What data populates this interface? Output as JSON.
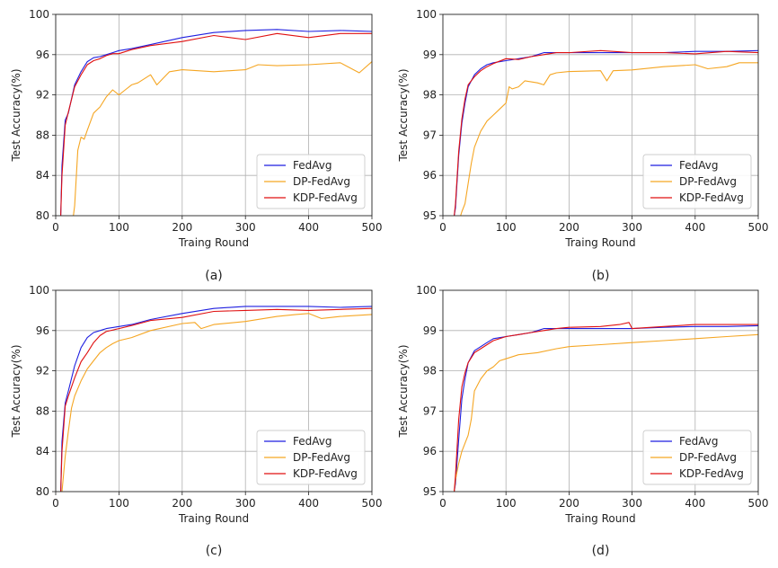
{
  "colors": {
    "FedAvg": "#1f1fe0",
    "DP-FedAvg": "#f5a623",
    "KDP-FedAvg": "#e01010"
  },
  "chart_data": [
    {
      "type": "line",
      "caption": "(a)",
      "xlabel": "Traing Round",
      "ylabel": "Test Accuracy(%)",
      "xlim": [
        0,
        500
      ],
      "ylim": [
        80,
        100
      ],
      "xticks": [
        "0",
        "100",
        "200",
        "300",
        "400",
        "500"
      ],
      "yticks": [
        "80",
        "84",
        "88",
        "92",
        "96",
        "100"
      ],
      "grid": true,
      "legend": "bottom-right",
      "series": [
        {
          "name": "FedAvg",
          "x": [
            8,
            10,
            15,
            20,
            30,
            40,
            50,
            60,
            70,
            80,
            90,
            100,
            120,
            150,
            200,
            250,
            300,
            350,
            400,
            450,
            500
          ],
          "y": [
            80,
            85,
            89.5,
            90.2,
            93.0,
            94.3,
            95.3,
            95.7,
            95.8,
            96.0,
            96.2,
            96.4,
            96.6,
            97.0,
            97.7,
            98.2,
            98.4,
            98.5,
            98.3,
            98.4,
            98.3
          ]
        },
        {
          "name": "DP-FedAvg",
          "x": [
            28,
            30,
            35,
            40,
            45,
            50,
            60,
            70,
            80,
            90,
            100,
            110,
            120,
            130,
            150,
            160,
            180,
            200,
            250,
            300,
            320,
            350,
            400,
            450,
            480,
            500
          ],
          "y": [
            80,
            81.0,
            86.5,
            87.8,
            87.6,
            88.5,
            90.2,
            90.8,
            91.8,
            92.5,
            92.0,
            92.5,
            93.0,
            93.2,
            94.0,
            93.0,
            94.3,
            94.5,
            94.3,
            94.5,
            95.0,
            94.9,
            95.0,
            95.2,
            94.2,
            95.3
          ]
        },
        {
          "name": "KDP-FedAvg",
          "x": [
            8,
            10,
            15,
            20,
            30,
            40,
            50,
            60,
            70,
            80,
            90,
            100,
            120,
            150,
            200,
            250,
            300,
            350,
            400,
            450,
            500
          ],
          "y": [
            80,
            84,
            89.0,
            90.3,
            92.8,
            94.0,
            95.0,
            95.4,
            95.6,
            95.9,
            96.1,
            96.1,
            96.5,
            96.9,
            97.3,
            97.9,
            97.5,
            98.1,
            97.7,
            98.1,
            98.1
          ]
        }
      ]
    },
    {
      "type": "line",
      "caption": "(b)",
      "xlabel": "Traing Round",
      "ylabel": "Test Accuracy(%)",
      "xlim": [
        0,
        500
      ],
      "ylim": [
        95,
        100
      ],
      "xticks": [
        "0",
        "100",
        "200",
        "300",
        "400",
        "500"
      ],
      "yticks": [
        "95",
        "96",
        "97",
        "98",
        "99",
        "100"
      ],
      "grid": true,
      "legend": "bottom-right",
      "series": [
        {
          "name": "FedAvg",
          "x": [
            18,
            20,
            25,
            30,
            35,
            40,
            50,
            60,
            70,
            80,
            100,
            120,
            140,
            160,
            180,
            200,
            250,
            300,
            350,
            400,
            450,
            500
          ],
          "y": [
            95,
            95.2,
            96.5,
            97.3,
            97.8,
            98.2,
            98.5,
            98.65,
            98.75,
            98.8,
            98.85,
            98.9,
            98.95,
            99.05,
            99.05,
            99.05,
            99.05,
            99.05,
            99.05,
            99.08,
            99.08,
            99.1
          ]
        },
        {
          "name": "DP-FedAvg",
          "x": [
            28,
            30,
            35,
            40,
            45,
            50,
            60,
            70,
            80,
            90,
            100,
            105,
            110,
            120,
            130,
            150,
            160,
            170,
            180,
            200,
            250,
            260,
            270,
            300,
            350,
            400,
            420,
            450,
            470,
            500
          ],
          "y": [
            95,
            95.1,
            95.3,
            95.8,
            96.3,
            96.7,
            97.1,
            97.35,
            97.5,
            97.65,
            97.8,
            98.2,
            98.15,
            98.2,
            98.35,
            98.3,
            98.25,
            98.5,
            98.55,
            98.58,
            98.6,
            98.35,
            98.6,
            98.62,
            98.7,
            98.75,
            98.65,
            98.7,
            98.8,
            98.8
          ]
        },
        {
          "name": "KDP-FedAvg",
          "x": [
            18,
            20,
            25,
            30,
            35,
            40,
            50,
            60,
            70,
            80,
            100,
            120,
            140,
            160,
            180,
            200,
            250,
            300,
            350,
            400,
            450,
            500
          ],
          "y": [
            95,
            95.3,
            96.6,
            97.4,
            97.9,
            98.25,
            98.45,
            98.6,
            98.7,
            98.78,
            98.9,
            98.88,
            98.95,
            99.0,
            99.05,
            99.05,
            99.1,
            99.05,
            99.05,
            99.02,
            99.08,
            99.05
          ]
        }
      ]
    },
    {
      "type": "line",
      "caption": "(c)",
      "xlabel": "Traing Round",
      "ylabel": "Test Accuracy(%)",
      "xlim": [
        0,
        500
      ],
      "ylim": [
        80,
        100
      ],
      "xticks": [
        "0",
        "100",
        "200",
        "300",
        "400",
        "500"
      ],
      "yticks": [
        "80",
        "84",
        "88",
        "92",
        "96",
        "100"
      ],
      "grid": true,
      "legend": "bottom-right",
      "series": [
        {
          "name": "FedAvg",
          "x": [
            8,
            10,
            15,
            20,
            30,
            40,
            50,
            60,
            70,
            80,
            100,
            120,
            150,
            200,
            250,
            300,
            350,
            400,
            450,
            500
          ],
          "y": [
            80,
            85,
            88.8,
            90.0,
            92.5,
            94.3,
            95.3,
            95.8,
            96.0,
            96.2,
            96.4,
            96.6,
            97.1,
            97.7,
            98.2,
            98.4,
            98.4,
            98.4,
            98.3,
            98.4
          ]
        },
        {
          "name": "DP-FedAvg",
          "x": [
            10,
            15,
            20,
            25,
            30,
            40,
            50,
            60,
            70,
            80,
            90,
            100,
            120,
            150,
            200,
            220,
            230,
            250,
            300,
            350,
            380,
            400,
            420,
            450,
            500
          ],
          "y": [
            80,
            83.5,
            86.0,
            88.3,
            89.5,
            91.0,
            92.2,
            93.0,
            93.8,
            94.3,
            94.7,
            95.0,
            95.3,
            96.0,
            96.7,
            96.8,
            96.2,
            96.6,
            96.9,
            97.4,
            97.6,
            97.7,
            97.2,
            97.4,
            97.6
          ]
        },
        {
          "name": "KDP-FedAvg",
          "x": [
            8,
            10,
            15,
            20,
            30,
            40,
            50,
            60,
            70,
            80,
            100,
            120,
            150,
            200,
            250,
            300,
            350,
            400,
            450,
            500
          ],
          "y": [
            80,
            84,
            88.5,
            89.5,
            91.3,
            92.9,
            93.8,
            94.8,
            95.5,
            95.9,
            96.2,
            96.5,
            97.0,
            97.3,
            97.9,
            98.0,
            98.1,
            98.0,
            98.1,
            98.2
          ]
        }
      ]
    },
    {
      "type": "line",
      "caption": "(d)",
      "xlabel": "Traing Round",
      "ylabel": "Test Accuracy(%)",
      "xlim": [
        0,
        500
      ],
      "ylim": [
        95,
        100
      ],
      "xticks": [
        "0",
        "100",
        "200",
        "300",
        "400",
        "500"
      ],
      "yticks": [
        "95",
        "96",
        "97",
        "98",
        "99",
        "100"
      ],
      "grid": true,
      "legend": "bottom-right",
      "series": [
        {
          "name": "FedAvg",
          "x": [
            18,
            20,
            25,
            30,
            35,
            40,
            50,
            60,
            70,
            80,
            100,
            120,
            140,
            160,
            180,
            200,
            250,
            300,
            350,
            400,
            450,
            500
          ],
          "y": [
            95,
            95.2,
            96.3,
            97.3,
            97.8,
            98.2,
            98.5,
            98.6,
            98.7,
            98.8,
            98.85,
            98.9,
            98.95,
            99.05,
            99.05,
            99.05,
            99.05,
            99.05,
            99.08,
            99.1,
            99.1,
            99.12
          ]
        },
        {
          "name": "DP-FedAvg",
          "x": [
            18,
            20,
            25,
            30,
            35,
            40,
            45,
            50,
            60,
            70,
            80,
            90,
            100,
            120,
            150,
            180,
            200,
            250,
            300,
            350,
            400,
            450,
            500
          ],
          "y": [
            95,
            95.3,
            95.7,
            96.0,
            96.2,
            96.4,
            96.8,
            97.5,
            97.8,
            98.0,
            98.1,
            98.25,
            98.3,
            98.4,
            98.45,
            98.55,
            98.6,
            98.65,
            98.7,
            98.75,
            98.8,
            98.85,
            98.9
          ]
        },
        {
          "name": "KDP-FedAvg",
          "x": [
            18,
            20,
            25,
            30,
            35,
            40,
            50,
            60,
            70,
            80,
            100,
            120,
            140,
            160,
            180,
            200,
            250,
            280,
            295,
            300,
            350,
            400,
            450,
            500
          ],
          "y": [
            95,
            95.4,
            96.8,
            97.6,
            97.95,
            98.2,
            98.45,
            98.55,
            98.65,
            98.75,
            98.85,
            98.9,
            98.95,
            99.0,
            99.05,
            99.08,
            99.1,
            99.15,
            99.2,
            99.05,
            99.1,
            99.15,
            99.15,
            99.15
          ]
        }
      ]
    }
  ]
}
